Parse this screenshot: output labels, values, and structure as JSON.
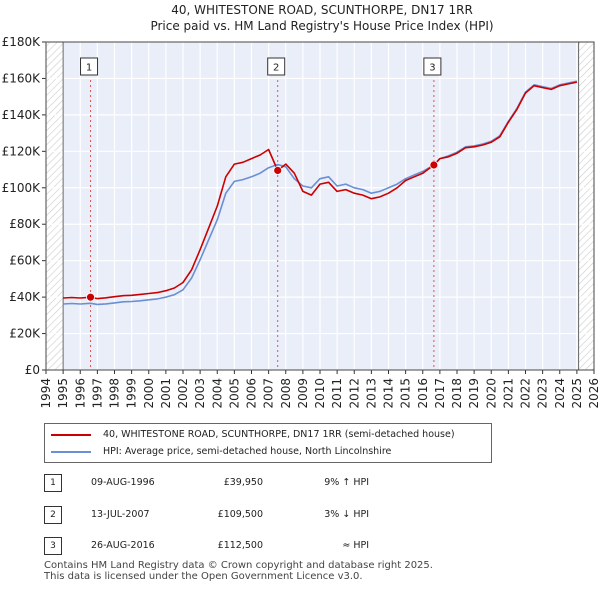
{
  "chart_data": {
    "type": "line",
    "title": "40, WHITESTONE ROAD, SCUNTHORPE, DN17 1RR",
    "subtitle": "Price paid vs. HM Land Registry's House Price Index (HPI)",
    "xlim": [
      1994,
      2026
    ],
    "ylim": [
      0,
      180000
    ],
    "x_ticks": [
      "1994",
      "1995",
      "1996",
      "1997",
      "1998",
      "1999",
      "2000",
      "2001",
      "2002",
      "2003",
      "2004",
      "2005",
      "2006",
      "2007",
      "2008",
      "2009",
      "2010",
      "2011",
      "2012",
      "2013",
      "2014",
      "2015",
      "2016",
      "2017",
      "2018",
      "2019",
      "2020",
      "2021",
      "2022",
      "2023",
      "2024",
      "2025",
      "2026"
    ],
    "y_ticks": [
      {
        "value": 0,
        "label": "£0"
      },
      {
        "value": 20000,
        "label": "£20K"
      },
      {
        "value": 40000,
        "label": "£40K"
      },
      {
        "value": 60000,
        "label": "£60K"
      },
      {
        "value": 80000,
        "label": "£80K"
      },
      {
        "value": 100000,
        "label": "£100K"
      },
      {
        "value": 120000,
        "label": "£120K"
      },
      {
        "value": 140000,
        "label": "£140K"
      },
      {
        "value": 160000,
        "label": "£160K"
      },
      {
        "value": 180000,
        "label": "£180K"
      }
    ],
    "data_range": [
      1995.0,
      2025.1
    ],
    "series": [
      {
        "name": "40, WHITESTONE ROAD, SCUNTHORPE, DN17 1RR (semi-detached house)",
        "color": "#cc0000",
        "x": [
          1995.0,
          1995.5,
          1996.0,
          1996.6,
          1997.0,
          1997.5,
          1998.0,
          1998.5,
          1999.0,
          1999.5,
          2000.0,
          2000.5,
          2001.0,
          2001.5,
          2002.0,
          2002.5,
          2003.0,
          2003.5,
          2004.0,
          2004.5,
          2005.0,
          2005.5,
          2006.0,
          2006.5,
          2007.0,
          2007.53,
          2008.0,
          2008.5,
          2009.0,
          2009.5,
          2010.0,
          2010.5,
          2011.0,
          2011.5,
          2012.0,
          2012.5,
          2013.0,
          2013.5,
          2014.0,
          2014.5,
          2015.0,
          2015.5,
          2016.0,
          2016.65,
          2017.0,
          2017.5,
          2018.0,
          2018.5,
          2019.0,
          2019.5,
          2020.0,
          2020.5,
          2021.0,
          2021.5,
          2022.0,
          2022.5,
          2023.0,
          2023.5,
          2024.0,
          2024.5,
          2025.0
        ],
        "y": [
          39500,
          39800,
          39500,
          39950,
          39200,
          39600,
          40200,
          40800,
          41000,
          41500,
          42000,
          42500,
          43500,
          45000,
          48000,
          55000,
          66000,
          78000,
          90000,
          106000,
          113000,
          114000,
          116000,
          118000,
          121000,
          109500,
          113000,
          108000,
          98000,
          96000,
          102000,
          103000,
          98000,
          99000,
          97000,
          96000,
          94000,
          95000,
          97000,
          100000,
          104000,
          106000,
          108000,
          112500,
          116000,
          117000,
          119000,
          122000,
          122500,
          123500,
          125000,
          128000,
          136000,
          143000,
          152000,
          156000,
          155000,
          154000,
          156000,
          157000,
          158000
        ]
      },
      {
        "name": "HPI: Average price, semi-detached house, North Lincolnshire",
        "color": "#6b8fd4",
        "x": [
          1995.0,
          1995.5,
          1996.0,
          1996.6,
          1997.0,
          1997.5,
          1998.0,
          1998.5,
          1999.0,
          1999.5,
          2000.0,
          2000.5,
          2001.0,
          2001.5,
          2002.0,
          2002.5,
          2003.0,
          2003.5,
          2004.0,
          2004.5,
          2005.0,
          2005.5,
          2006.0,
          2006.5,
          2007.0,
          2007.53,
          2008.0,
          2008.5,
          2009.0,
          2009.5,
          2010.0,
          2010.5,
          2011.0,
          2011.5,
          2012.0,
          2012.5,
          2013.0,
          2013.5,
          2014.0,
          2014.5,
          2015.0,
          2015.5,
          2016.0,
          2016.65,
          2017.0,
          2017.5,
          2018.0,
          2018.5,
          2019.0,
          2019.5,
          2020.0,
          2020.5,
          2021.0,
          2021.5,
          2022.0,
          2022.5,
          2023.0,
          2023.5,
          2024.0,
          2024.5,
          2025.0
        ],
        "y": [
          36200,
          36500,
          36200,
          36600,
          36000,
          36300,
          36800,
          37400,
          37600,
          38000,
          38500,
          39000,
          40000,
          41300,
          44000,
          50500,
          60500,
          71500,
          82500,
          97000,
          103500,
          104500,
          106000,
          108000,
          111000,
          112800,
          111500,
          105000,
          101000,
          100000,
          105000,
          106000,
          101000,
          102000,
          100000,
          99000,
          97000,
          98000,
          100000,
          102000,
          105000,
          107000,
          109000,
          112500,
          116000,
          117500,
          119500,
          122500,
          123000,
          124000,
          125500,
          128500,
          136500,
          143500,
          152500,
          156500,
          155500,
          154500,
          156500,
          157500,
          158500
        ]
      }
    ],
    "annotations": [
      {
        "label": "1",
        "x": 1996.6,
        "y": 39950
      },
      {
        "label": "2",
        "x": 2007.53,
        "y": 109500
      },
      {
        "label": "3",
        "x": 2016.65,
        "y": 112500
      }
    ]
  },
  "legend": {
    "items": [
      {
        "label": "40, WHITESTONE ROAD, SCUNTHORPE, DN17 1RR (semi-detached house)",
        "color": "#cc0000"
      },
      {
        "label": "HPI: Average price, semi-detached house, North Lincolnshire",
        "color": "#6b8fd4"
      }
    ]
  },
  "sales": [
    {
      "num": "1",
      "date": "09-AUG-1996",
      "price": "£39,950",
      "hpi": "9% ↑ HPI"
    },
    {
      "num": "2",
      "date": "13-JUL-2007",
      "price": "£109,500",
      "hpi": "3% ↓ HPI"
    },
    {
      "num": "3",
      "date": "26-AUG-2016",
      "price": "£112,500",
      "hpi": "≈ HPI"
    }
  ],
  "footer": {
    "line1": "Contains HM Land Registry data © Crown copyright and database right 2025.",
    "line2": "This data is licensed under the Open Government Licence v3.0."
  }
}
